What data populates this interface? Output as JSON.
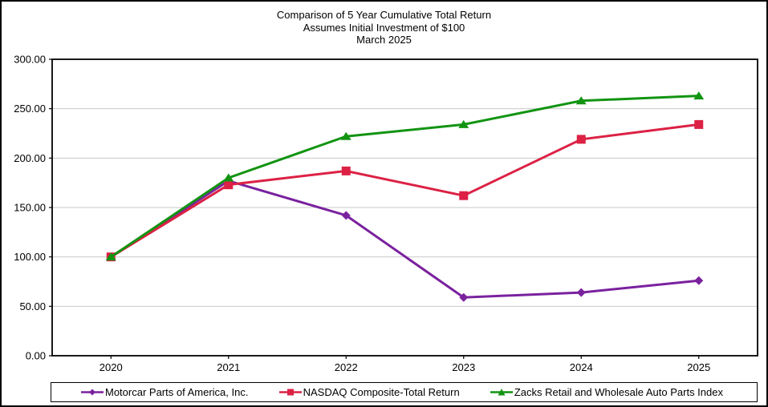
{
  "chart_data": {
    "type": "line",
    "title": "Comparison of 5 Year Cumulative Total Return",
    "subtitle": "Assumes Initial Investment of $100",
    "subtitle2": "March 2025",
    "categories": [
      "2020",
      "2021",
      "2022",
      "2023",
      "2024",
      "2025"
    ],
    "series": [
      {
        "name": "Motorcar Parts of America, Inc.",
        "color": "#7A219E",
        "marker": "diamond",
        "values": [
          100.0,
          177.0,
          142.0,
          59.0,
          64.0,
          76.0
        ]
      },
      {
        "name": "NASDAQ Composite-Total Return",
        "color": "#DC2144",
        "marker": "square",
        "values": [
          100.0,
          173.0,
          187.0,
          162.0,
          219.0,
          234.0
        ]
      },
      {
        "name": "Zacks Retail and Wholesale Auto Parts Index",
        "color": "#129412",
        "marker": "triangle",
        "values": [
          100.0,
          180.0,
          222.0,
          234.0,
          258.0,
          263.0
        ]
      }
    ],
    "ylim": [
      0,
      300
    ],
    "ytick_step": 50,
    "ytick_labels": [
      "0.00",
      "50.00",
      "100.00",
      "150.00",
      "200.00",
      "250.00",
      "300.00"
    ],
    "grid": "horizontal",
    "gridline_color": "#C9C9C9",
    "axis_color": "#000000",
    "legend_position": "bottom"
  }
}
